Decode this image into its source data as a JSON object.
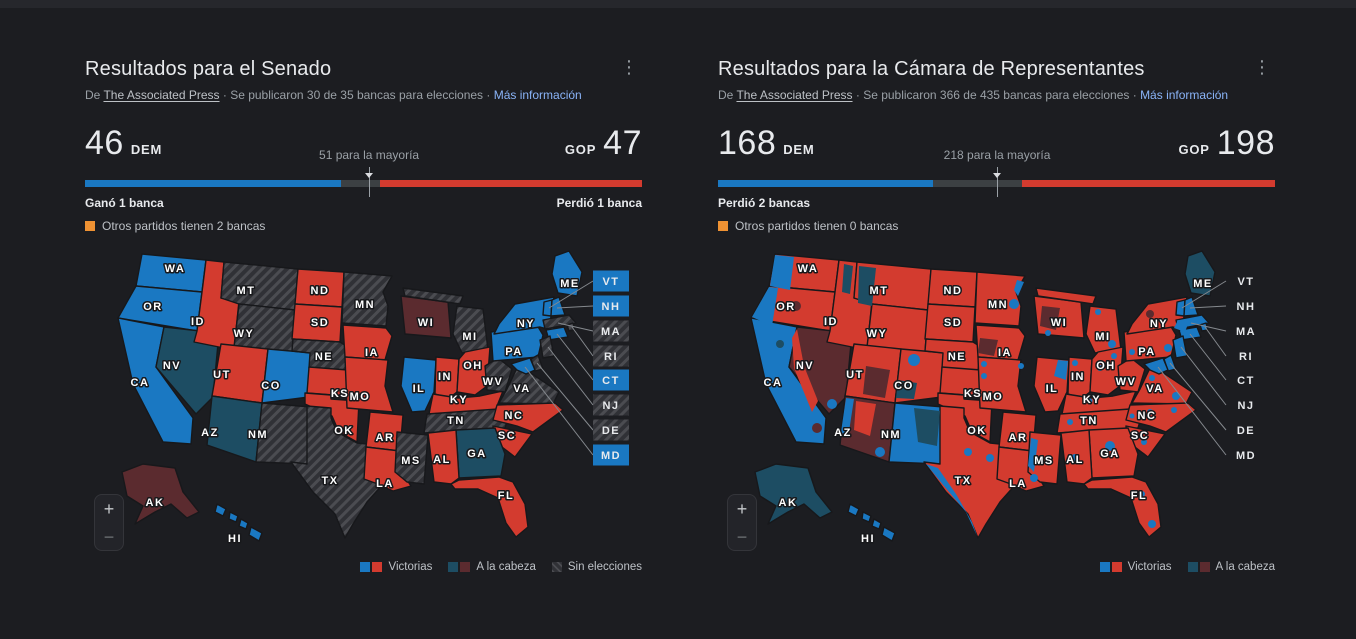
{
  "colors": {
    "dem": "#1a78c2",
    "gop": "#d33b2f",
    "lead_dem": "#1d4d63",
    "lead_gop": "#5b2b2f",
    "other": "#ef9233",
    "no_election_bg": "#303136",
    "no_election_stripe": "#4b4c51"
  },
  "panels": [
    {
      "title": "Resultados para el Senado",
      "source": {
        "prefix": "De ",
        "name": "The Associated Press",
        "mid": " · Se publicaron 30 de 35 bancas para elecciones · ",
        "more": "Más información"
      },
      "score": {
        "dem": "46",
        "dem_party": "DEM",
        "gop": "47",
        "gop_party": "GOP",
        "majority": "51 para la mayoría"
      },
      "bar": {
        "dem_pct": 46,
        "gop_pct": 47,
        "marker_pct": 51
      },
      "change": {
        "dem": "Ganó 1 banca",
        "gop": "Perdió 1 banca"
      },
      "others": "Otros partidos tienen 2 bancas",
      "zoom": {
        "in": "+",
        "out": "−"
      },
      "legend": [
        {
          "label": "Victorias",
          "type": "win"
        },
        {
          "label": "A la cabeza",
          "type": "lead"
        },
        {
          "label": "Sin elecciones",
          "type": "none"
        }
      ],
      "callouts": [
        "VT",
        "NH",
        "MA",
        "RI",
        "CT",
        "NJ",
        "DE",
        "MD"
      ],
      "boxed_callouts": true,
      "states": {
        "WA": "dem",
        "OR": "dem",
        "CA": "dem",
        "NV": "lead_dem",
        "ID": "gop",
        "MT": "none",
        "WY": "none",
        "UT": "gop",
        "AZ": "lead_dem",
        "NM": "none",
        "CO": "dem",
        "ND": "gop",
        "SD": "gop",
        "NE": "none",
        "KS": "gop",
        "OK": "gop",
        "TX": "none",
        "MN": "none",
        "IA": "gop",
        "MO": "gop",
        "AR": "gop",
        "LA": "gop",
        "WI": "lead_gop",
        "IL": "dem",
        "MS": "none",
        "MI": "none",
        "IN": "gop",
        "OH": "gop",
        "KY": "gop",
        "TN": "none",
        "AL": "gop",
        "GA": "lead_dem",
        "WV": "none",
        "VA": "none",
        "NC": "gop",
        "SC": "gop",
        "FL": "gop",
        "PA": "dem",
        "NY": "dem",
        "ME": "dem",
        "AK": "lead_gop",
        "HI": "dem",
        "VT": "dem",
        "NH": "dem",
        "MA": "none",
        "RI": "none",
        "CT": "dem",
        "NJ": "none",
        "DE": "none",
        "MD": "dem"
      }
    },
    {
      "title": "Resultados para la Cámara de Representantes",
      "source": {
        "prefix": "De ",
        "name": "The Associated Press",
        "mid": " · Se publicaron 366 de 435 bancas para elecciones · ",
        "more": "Más información"
      },
      "score": {
        "dem": "168",
        "dem_party": "DEM",
        "gop": "198",
        "gop_party": "GOP",
        "majority": "218 para la mayoría"
      },
      "bar": {
        "dem_pct": 38.6,
        "gop_pct": 45.5,
        "marker_pct": 50.1
      },
      "change": {
        "dem": "Perdió 2 bancas",
        "gop": ""
      },
      "others": "Otros partidos tienen 0 bancas",
      "zoom": {
        "in": "+",
        "out": "−"
      },
      "legend": [
        {
          "label": "Victorias",
          "type": "win"
        },
        {
          "label": "A la cabeza",
          "type": "lead"
        }
      ],
      "callouts": [
        "VT",
        "NH",
        "MA",
        "RI",
        "CT",
        "NJ",
        "DE",
        "MD"
      ],
      "boxed_callouts": false,
      "states": {
        "WA": "gop",
        "OR": "gop",
        "CA": "dem",
        "NV": "lead_gop",
        "ID": "gop",
        "MT": "gop",
        "WY": "gop",
        "UT": "gop",
        "AZ": "lead_gop",
        "NM": "dem",
        "CO": "gop",
        "ND": "gop",
        "SD": "gop",
        "NE": "gop",
        "KS": "gop",
        "OK": "gop",
        "TX": "gop",
        "MN": "gop",
        "IA": "gop",
        "MO": "gop",
        "AR": "gop",
        "LA": "gop",
        "WI": "gop",
        "IL": "gop",
        "MS": "gop",
        "MI": "gop",
        "IN": "gop",
        "OH": "gop",
        "KY": "gop",
        "TN": "gop",
        "AL": "gop",
        "GA": "gop",
        "WV": "gop",
        "VA": "gop",
        "NC": "gop",
        "SC": "gop",
        "FL": "gop",
        "PA": "gop",
        "NY": "gop",
        "ME": "lead_dem",
        "AK": "lead_dem",
        "HI": "dem",
        "VT": "dem",
        "NH": "dem",
        "MA": "dem",
        "RI": "dem",
        "CT": "dem",
        "NJ": "dem",
        "DE": "dem",
        "MD": "dem"
      }
    }
  ]
}
